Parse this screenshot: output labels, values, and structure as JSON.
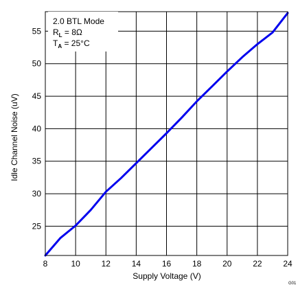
{
  "chart_data": {
    "type": "line",
    "xlabel": "Supply Voltage (V)",
    "ylabel": "Idle Channel Noise (uV)",
    "xlim": [
      8,
      24
    ],
    "ylim": [
      20.5,
      58
    ],
    "x_ticks": [
      8,
      10,
      12,
      14,
      16,
      18,
      20,
      22,
      24
    ],
    "y_ticks": [
      25,
      30,
      35,
      40,
      45,
      50,
      55
    ],
    "grid": true,
    "legend_placement": "top-left",
    "annotation": {
      "line1": "2.0 BTL Mode",
      "line2_main": "R",
      "line2_sub": "L",
      "line2_rest": " = 8Ω",
      "line3_main": "T",
      "line3_sub": "A",
      "line3_rest": " = 25°C"
    },
    "series": [
      {
        "color": "#0000ee",
        "x": [
          8,
          9,
          10,
          11,
          12,
          13,
          14,
          15,
          16,
          17,
          18,
          19,
          20,
          21,
          22,
          23,
          24
        ],
        "values": [
          20.5,
          23.2,
          25.1,
          27.5,
          30.3,
          32.4,
          34.7,
          37.0,
          39.3,
          41.7,
          44.2,
          46.5,
          48.8,
          51.0,
          53.0,
          54.8,
          57.8
        ]
      }
    ],
    "figure_id": "G01"
  }
}
